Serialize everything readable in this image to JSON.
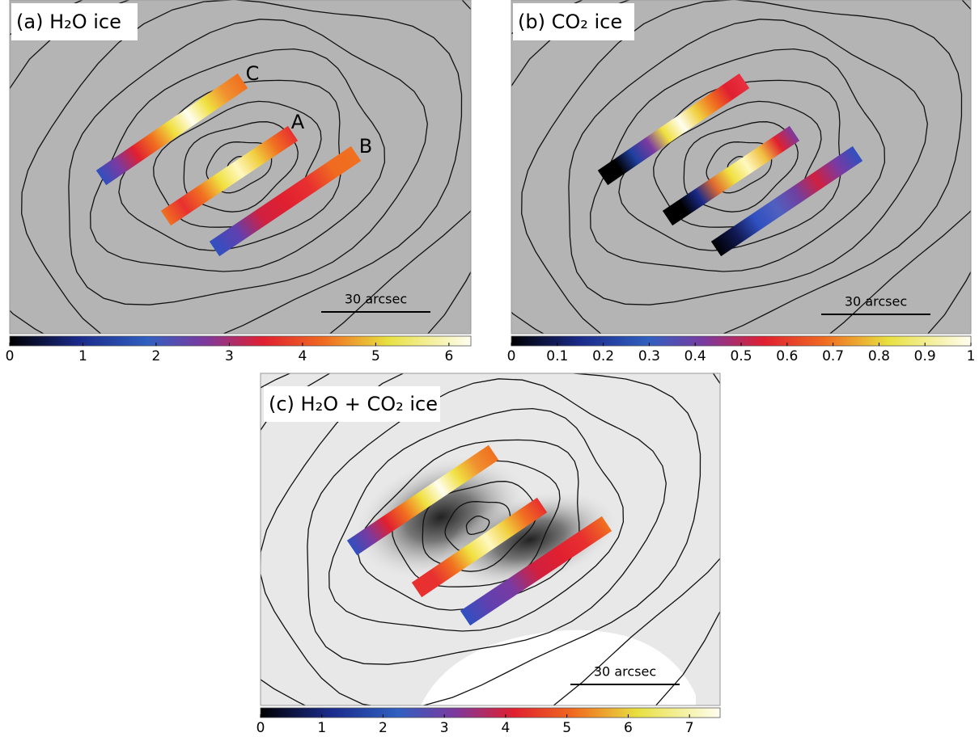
{
  "panels": [
    {
      "label": "(a) H₂O ice",
      "strip_labels": [
        "C",
        "A",
        "B"
      ],
      "scale_bar": "30 arcsec",
      "colorbar": {
        "lim": [
          0,
          6.3
        ],
        "ticks": [
          0,
          1,
          2,
          3,
          4,
          5,
          6
        ]
      }
    },
    {
      "label": "(b) CO₂ ice",
      "scale_bar": "30 arcsec",
      "colorbar": {
        "lim": [
          0,
          1
        ],
        "ticks": [
          0,
          0.1,
          0.2,
          0.3,
          0.4,
          0.5,
          0.6,
          0.7,
          0.8,
          0.9,
          1
        ]
      }
    },
    {
      "label": "(c) H₂O + CO₂ ice",
      "scale_bar": "30 arcsec",
      "colorbar": {
        "lim": [
          0,
          7.5
        ],
        "ticks": [
          0,
          1,
          2,
          3,
          4,
          5,
          6,
          7
        ]
      }
    }
  ]
}
